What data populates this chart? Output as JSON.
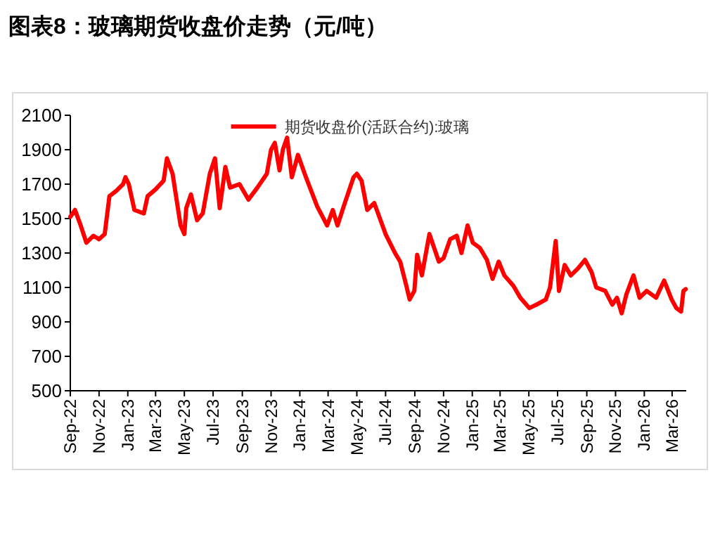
{
  "chart_data": {
    "type": "line",
    "title": "图表8：玻璃期货收盘价走势（元/吨）",
    "x": [
      "2022-09-01",
      "2022-09-11",
      "2022-09-23",
      "2022-10-05",
      "2022-10-20",
      "2022-11-01",
      "2022-11-13",
      "2022-11-23",
      "2022-12-07",
      "2022-12-22",
      "2022-12-27",
      "2023-01-03",
      "2023-01-15",
      "2023-02-04",
      "2023-02-12",
      "2023-03-01",
      "2023-03-18",
      "2023-03-25",
      "2023-04-06",
      "2023-04-23",
      "2023-05-01",
      "2023-05-05",
      "2023-05-15",
      "2023-05-28",
      "2023-06-09",
      "2023-06-24",
      "2023-07-05",
      "2023-07-15",
      "2023-07-27",
      "2023-08-06",
      "2023-08-26",
      "2023-09-14",
      "2023-10-03",
      "2023-10-23",
      "2023-11-01",
      "2023-11-09",
      "2023-11-19",
      "2023-11-26",
      "2023-12-05",
      "2023-12-15",
      "2023-12-28",
      "2024-01-14",
      "2024-02-07",
      "2024-02-28",
      "2024-03-11",
      "2024-03-21",
      "2024-04-03",
      "2024-04-24",
      "2024-05-01",
      "2024-05-11",
      "2024-05-23",
      "2024-06-07",
      "2024-07-01",
      "2024-07-21",
      "2024-08-01",
      "2024-08-14",
      "2024-08-21",
      "2024-08-31",
      "2024-09-06",
      "2024-09-16",
      "2024-10-02",
      "2024-10-22",
      "2024-11-01",
      "2024-11-15",
      "2024-11-29",
      "2024-12-09",
      "2024-12-22",
      "2025-01-02",
      "2025-01-17",
      "2025-02-01",
      "2025-02-13",
      "2025-02-26",
      "2025-03-10",
      "2025-03-29",
      "2025-04-13",
      "2025-05-02",
      "2025-05-17",
      "2025-06-06",
      "2025-06-15",
      "2025-06-27",
      "2025-07-04",
      "2025-07-16",
      "2025-07-29",
      "2025-08-13",
      "2025-08-28",
      "2025-09-11",
      "2025-09-21",
      "2025-10-10",
      "2025-10-25",
      "2025-11-04",
      "2025-11-14",
      "2025-11-24",
      "2025-12-09",
      "2025-12-22",
      "2026-01-06",
      "2026-01-26",
      "2026-02-12",
      "2026-02-28",
      "2026-03-10",
      "2026-03-20",
      "2026-03-25",
      "2026-03-30"
    ],
    "series": [
      {
        "name": "期货收盘价(活跃合约):玻璃",
        "color": "#ff0000",
        "values": [
          1510,
          1550,
          1460,
          1360,
          1400,
          1380,
          1410,
          1630,
          1660,
          1700,
          1740,
          1700,
          1550,
          1530,
          1630,
          1670,
          1720,
          1850,
          1760,
          1460,
          1410,
          1560,
          1640,
          1490,
          1530,
          1760,
          1850,
          1560,
          1800,
          1680,
          1700,
          1610,
          1680,
          1760,
          1900,
          1940,
          1780,
          1900,
          1970,
          1740,
          1870,
          1740,
          1570,
          1460,
          1550,
          1460,
          1570,
          1740,
          1760,
          1720,
          1550,
          1590,
          1410,
          1300,
          1250,
          1110,
          1030,
          1080,
          1290,
          1170,
          1410,
          1250,
          1270,
          1380,
          1400,
          1300,
          1460,
          1360,
          1330,
          1260,
          1150,
          1250,
          1170,
          1110,
          1040,
          980,
          1000,
          1030,
          1100,
          1370,
          1080,
          1230,
          1170,
          1210,
          1260,
          1190,
          1100,
          1080,
          1000,
          1040,
          950,
          1060,
          1170,
          1040,
          1080,
          1040,
          1140,
          1030,
          980,
          960,
          1080,
          1090
        ]
      }
    ],
    "xlim": [
      "2022-09-01",
      "2026-03-31"
    ],
    "xticks": [
      {
        "value": "2022-09-01",
        "label": "Sep-22"
      },
      {
        "value": "2022-11-01",
        "label": "Nov-22"
      },
      {
        "value": "2023-01-01",
        "label": "Jan-23"
      },
      {
        "value": "2023-03-01",
        "label": "Mar-23"
      },
      {
        "value": "2023-05-01",
        "label": "May-23"
      },
      {
        "value": "2023-07-01",
        "label": "Jul-23"
      },
      {
        "value": "2023-09-01",
        "label": "Sep-23"
      },
      {
        "value": "2023-11-01",
        "label": "Nov-23"
      },
      {
        "value": "2024-01-01",
        "label": "Jan-24"
      },
      {
        "value": "2024-03-01",
        "label": "Mar-24"
      },
      {
        "value": "2024-05-01",
        "label": "May-24"
      },
      {
        "value": "2024-07-01",
        "label": "Jul-24"
      },
      {
        "value": "2024-09-01",
        "label": "Sep-24"
      },
      {
        "value": "2024-11-01",
        "label": "Nov-24"
      },
      {
        "value": "2025-01-01",
        "label": "Jan-25"
      },
      {
        "value": "2025-03-01",
        "label": "Mar-25"
      },
      {
        "value": "2025-05-01",
        "label": "May-25"
      },
      {
        "value": "2025-07-01",
        "label": "Jul-25"
      },
      {
        "value": "2025-09-01",
        "label": "Sep-25"
      },
      {
        "value": "2025-11-01",
        "label": "Nov-25"
      },
      {
        "value": "2026-01-01",
        "label": "Jan-26"
      },
      {
        "value": "2026-03-01",
        "label": "Mar-26"
      }
    ],
    "ylim": [
      500,
      2100
    ],
    "yticks": [
      500,
      700,
      900,
      1100,
      1300,
      1500,
      1700,
      1900,
      2100
    ],
    "grid": false,
    "legend": "top",
    "marker": "none",
    "line_style": "solid"
  }
}
